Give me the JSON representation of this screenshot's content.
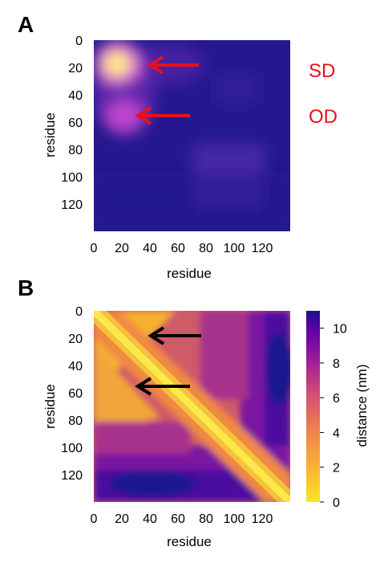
{
  "panels": {
    "a_label": "A",
    "b_label": "B"
  },
  "colorbar": {
    "label": "distance (nm)",
    "ticks": [
      "0",
      "2",
      "4",
      "6",
      "8",
      "10"
    ]
  },
  "colors": {
    "red_annotation": "#e8101b",
    "black_arrow": "#000000",
    "heat_low": "#f7e225",
    "heat_high": "#1b0f8a",
    "panel_a_bg": "#25188f"
  },
  "chart_data": [
    {
      "type": "heatmap",
      "panel": "A",
      "xlabel": "residue",
      "ylabel": "residue",
      "xticks": [
        "0",
        "20",
        "40",
        "60",
        "80",
        "100",
        "120"
      ],
      "yticks": [
        "0",
        "20",
        "40",
        "60",
        "80",
        "100",
        "120"
      ],
      "xlim": [
        0,
        140
      ],
      "ylim": [
        0,
        140
      ],
      "y_axis_inverted": true,
      "annotations": [
        {
          "text": "SD",
          "residue": 18,
          "arrow": true,
          "color": "#e8101b"
        },
        {
          "text": "OD",
          "residue": 55,
          "arrow": true,
          "color": "#e8101b"
        }
      ],
      "hotspots": [
        {
          "x": 17,
          "y": 18,
          "intensity": 1.0
        },
        {
          "x": 20,
          "y": 55,
          "intensity": 0.6
        },
        {
          "x": 100,
          "y": 95,
          "intensity": 0.25
        }
      ]
    },
    {
      "type": "heatmap",
      "panel": "B",
      "xlabel": "residue",
      "ylabel": "residue",
      "xticks": [
        "0",
        "20",
        "40",
        "60",
        "80",
        "100",
        "120"
      ],
      "yticks": [
        "0",
        "20",
        "40",
        "60",
        "80",
        "100",
        "120"
      ],
      "xlim": [
        0,
        140
      ],
      "ylim": [
        0,
        140
      ],
      "y_axis_inverted": true,
      "value_label": "distance (nm)",
      "value_range": [
        0,
        11
      ],
      "colorbar_ticks": [
        0,
        2,
        4,
        6,
        8,
        10
      ],
      "annotations": [
        {
          "text": "",
          "residue": 18,
          "arrow": true,
          "color": "#000000"
        },
        {
          "text": "",
          "residue": 55,
          "arrow": true,
          "color": "#000000"
        }
      ]
    }
  ]
}
